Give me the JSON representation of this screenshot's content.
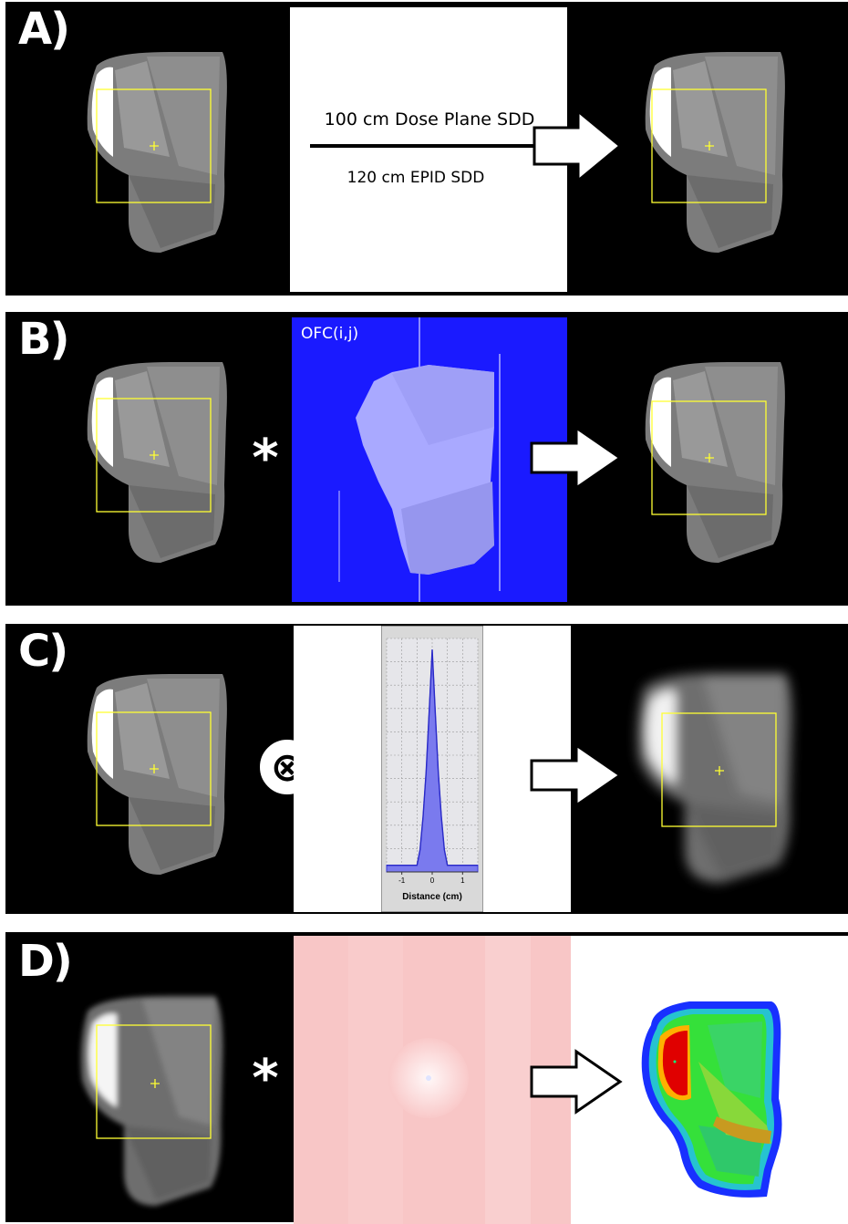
{
  "panels": [
    {
      "label": "A)",
      "operator": "",
      "middle": "geometry"
    },
    {
      "label": "B)",
      "operator": "*",
      "middle": "ofc_map"
    },
    {
      "label": "C)",
      "operator": "⊗",
      "middle": "kernel_plot"
    },
    {
      "label": "D)",
      "operator": "*",
      "middle": "correction_map"
    }
  ],
  "geometry": {
    "line_top_label": "100 cm Dose Plane SDD",
    "line_bottom_label": "120 cm EPID SDD"
  },
  "ofc_map": {
    "label": "OFC(i,j)",
    "background_color": "#1a1aff"
  },
  "kernel_plot": {
    "xlabel": "Distance (cm)",
    "tick_labels": [
      "-1",
      "0",
      "1"
    ]
  },
  "correction_map": {
    "background_color": "#f9c9c9"
  },
  "chart_data": {
    "type": "line",
    "x": [
      -1.5,
      -0.5,
      -0.4,
      -0.3,
      -0.2,
      -0.1,
      0.0,
      0.1,
      0.2,
      0.3,
      0.4,
      0.5,
      1.5
    ],
    "series": [
      {
        "values": [
          0.03,
          0.03,
          0.1,
          0.25,
          0.45,
          0.72,
          1.0,
          0.72,
          0.45,
          0.25,
          0.1,
          0.03,
          0.03
        ]
      }
    ],
    "xlabel": "Distance (cm)",
    "xticks": [
      "-1",
      "0",
      "1"
    ],
    "grid": true,
    "fill": "area"
  }
}
